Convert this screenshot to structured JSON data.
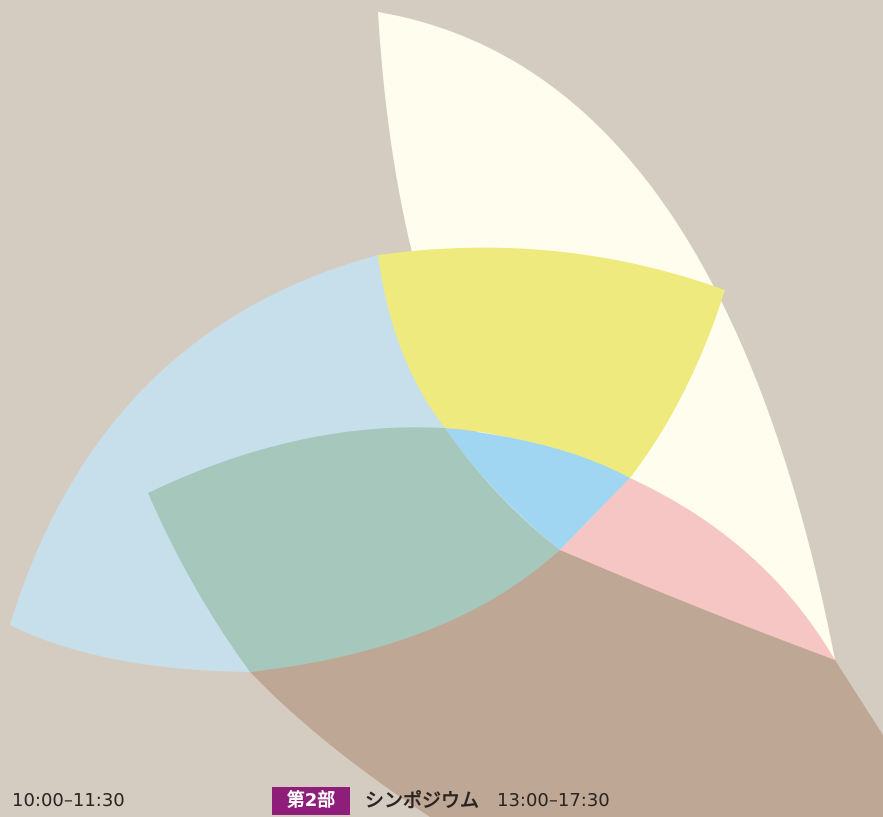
{
  "schedule": {
    "session1_time": "10:00–11:30",
    "part_label": "第2部",
    "part_title": "シンポジウム",
    "part_time": "13:00–17:30"
  }
}
